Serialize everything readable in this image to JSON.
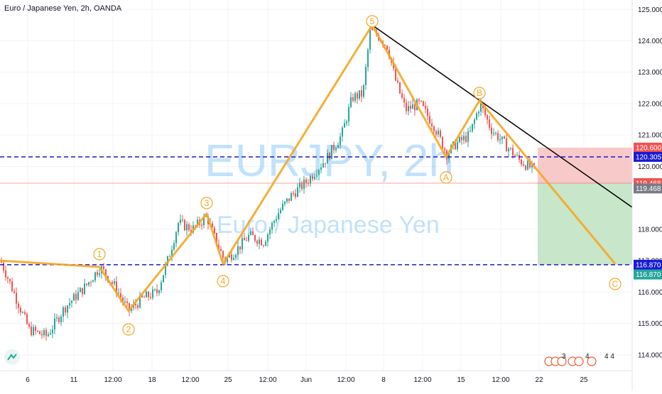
{
  "header": {
    "title": "Euro / Japanese Yen, 2h, OANDA"
  },
  "watermark": {
    "symbol": "EURJPY, 2h",
    "name": "Euro / Japanese Yen"
  },
  "colors": {
    "wave": "#f5a623",
    "trend": "#000000",
    "dashed": "#1a1ad4",
    "up": "#26a69a",
    "down": "#ef5350",
    "stop_zone": "#f8c9c9",
    "target_zone": "#c8e6c9",
    "price_line": "#ef5350"
  },
  "chart_data": {
    "type": "candlestick",
    "title": "Euro / Japanese Yen, 2h, OANDA",
    "ylim": [
      113.5,
      125.3
    ],
    "yticks": [
      "125.000",
      "124.000",
      "123.000",
      "122.000",
      "121.000",
      "120.000",
      "118.000",
      "117.000",
      "116.000",
      "115.000",
      "114.000"
    ],
    "xticks": [
      "6",
      "11",
      "12:00",
      "18",
      "12:00",
      "25",
      "12:00",
      "Jun",
      "12:00",
      "8",
      "12:00",
      "15",
      "12:00",
      "22",
      "25"
    ],
    "price_path": [
      [
        0,
        117.0
      ],
      [
        40,
        114.8
      ],
      [
        65,
        114.6
      ],
      [
        90,
        115.5
      ],
      [
        120,
        116.2
      ],
      [
        140,
        116.8
      ],
      [
        160,
        116.2
      ],
      [
        180,
        115.4
      ],
      [
        200,
        115.8
      ],
      [
        220,
        116.0
      ],
      [
        235,
        117.0
      ],
      [
        250,
        118.2
      ],
      [
        270,
        118.0
      ],
      [
        290,
        118.4
      ],
      [
        300,
        117.8
      ],
      [
        315,
        117.0
      ],
      [
        330,
        117.3
      ],
      [
        350,
        117.8
      ],
      [
        370,
        117.6
      ],
      [
        390,
        118.5
      ],
      [
        410,
        119.1
      ],
      [
        430,
        119.5
      ],
      [
        460,
        120.3
      ],
      [
        480,
        121.0
      ],
      [
        495,
        122.2
      ],
      [
        510,
        122.3
      ],
      [
        520,
        124.3
      ],
      [
        530,
        124.2
      ],
      [
        545,
        123.8
      ],
      [
        555,
        122.8
      ],
      [
        570,
        121.8
      ],
      [
        590,
        122.0
      ],
      [
        610,
        121.3
      ],
      [
        628,
        120.4
      ],
      [
        640,
        120.7
      ],
      [
        660,
        121.0
      ],
      [
        675,
        122.0
      ],
      [
        690,
        121.2
      ],
      [
        710,
        120.7
      ],
      [
        730,
        120.2
      ],
      [
        750,
        119.9
      ]
    ],
    "elliott_wave": [
      {
        "label": "1",
        "price": 116.8
      },
      {
        "label": "2",
        "price": 115.4
      },
      {
        "label": "3",
        "price": 118.5
      },
      {
        "label": "4",
        "price": 116.9
      },
      {
        "label": "5",
        "price": 124.5
      },
      {
        "label": "A",
        "price": 120.3
      },
      {
        "label": "B",
        "price": 122.1
      },
      {
        "label": "C",
        "price": 116.9
      }
    ],
    "trendline": [
      124.5,
      118.7
    ],
    "levels": {
      "upper_dashed": 120.305,
      "lower_dashed": 116.87,
      "current": 119.468,
      "stop": 120.6,
      "target": 116.87
    },
    "price_labels": [
      {
        "text": "120.600",
        "price": 120.6,
        "color": "#ef5350"
      },
      {
        "text": "120.305",
        "price": 120.305,
        "color": "#1a1ad4"
      },
      {
        "text": "119.468",
        "price": 119.468,
        "color": "#ef5350"
      },
      {
        "text": "119.468",
        "price": 119.3,
        "color": "#787b86"
      },
      {
        "text": "116.870",
        "price": 116.87,
        "color": "#1a1ad4"
      },
      {
        "text": "116.870",
        "price": 116.56,
        "color": "#26a69a"
      }
    ],
    "event_badges": [
      "3",
      "4",
      "4 4"
    ]
  }
}
